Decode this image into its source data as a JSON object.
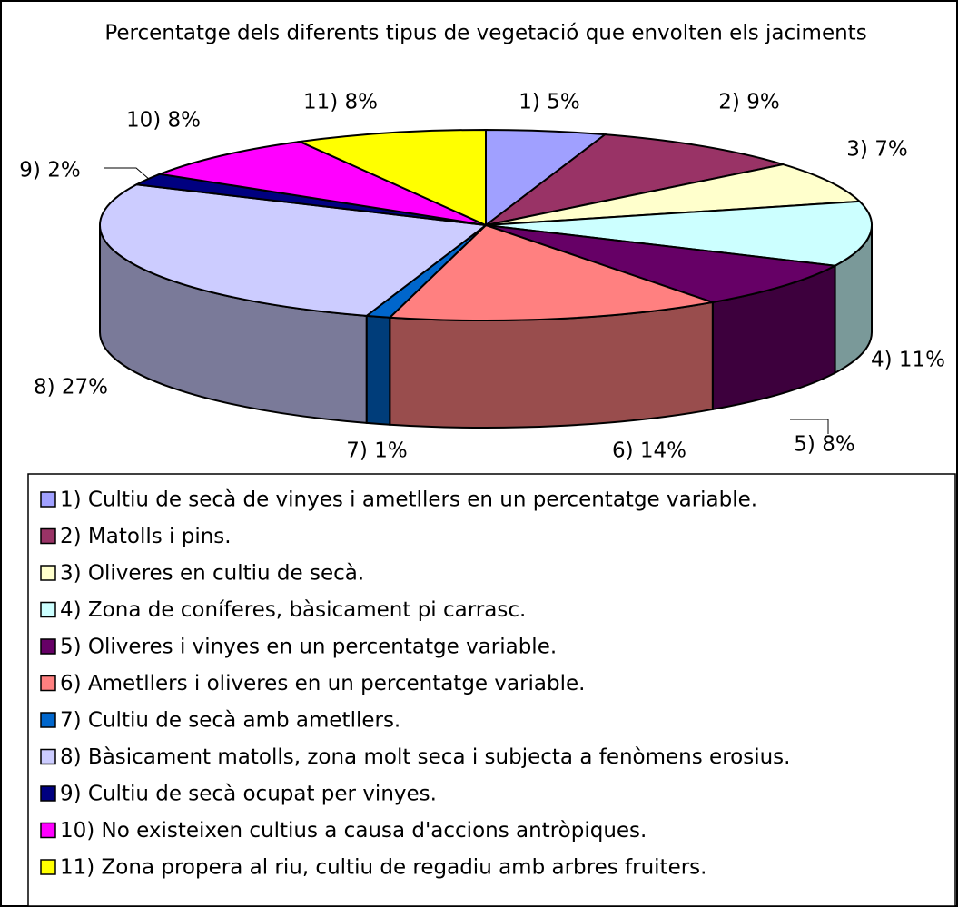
{
  "chart_data": {
    "type": "pie3d",
    "title": "Percentatge dels diferents tipus de vegetació  que envolten els jaciments",
    "categories": [
      "1) Cultiu de secà de vinyes i ametllers en un percentatge variable.",
      "2) Matolls i pins.",
      "3) Oliveres en cultiu de secà.",
      "4) Zona de coníferes, bàsicament pi carrasc.",
      "5) Oliveres i vinyes en un percentatge variable.",
      "6) Ametllers i oliveres en un percentatge variable.",
      "7) Cultiu de secà amb ametllers.",
      "8) Bàsicament matolls, zona molt seca i subjecta a fenòmens erosius.",
      "9) Cultiu de secà ocupat per vinyes.",
      "10) No existeixen cultius a causa d'accions antròpiques.",
      "11) Zona propera al riu, cultiu de regadiu amb arbres fruiters."
    ],
    "values": [
      5,
      9,
      7,
      11,
      8,
      14,
      1,
      27,
      2,
      8,
      8
    ],
    "value_labels": [
      "1) 5%",
      "2) 9%",
      "3) 7%",
      "4) 11%",
      "5) 8%",
      "6) 14%",
      "7) 1%",
      "8) 27%",
      "9) 2%",
      "10) 8%",
      "11) 8%"
    ],
    "colors": [
      "#a0a0ff",
      "#993366",
      "#ffffcc",
      "#ccffff",
      "#660066",
      "#ff8080",
      "#0066cc",
      "#ccccff",
      "#000080",
      "#ff00ff",
      "#ffff00"
    ],
    "legend": "bottom"
  }
}
